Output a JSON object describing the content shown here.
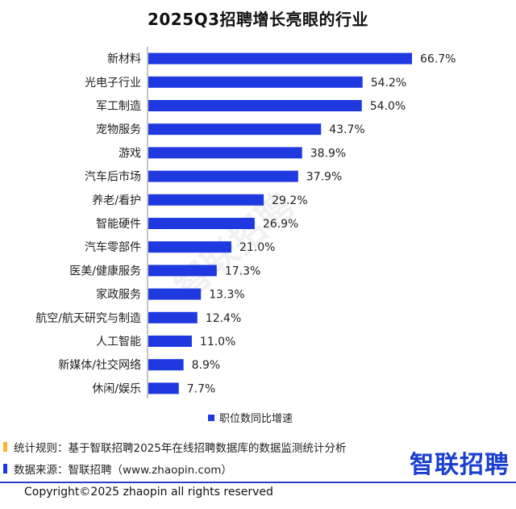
{
  "title": "2025Q3招聘增长亮眼的行业",
  "colors": {
    "bar": "#1f39e0",
    "note_mark_1": "#f7b733",
    "note_mark_2": "#1f39e0",
    "brand": "#1a3fd0"
  },
  "chart_data": {
    "type": "bar",
    "orientation": "horizontal",
    "categories": [
      "新材料",
      "光电子行业",
      "军工制造",
      "宠物服务",
      "游戏",
      "汽车后市场",
      "养老/看护",
      "智能硬件",
      "汽车零部件",
      "医美/健康服务",
      "家政服务",
      "航空/航天研究与制造",
      "人工智能",
      "新媒体/社交网络",
      "休闲/娱乐"
    ],
    "values": [
      66.7,
      54.2,
      54.0,
      43.7,
      38.9,
      37.9,
      29.2,
      26.9,
      21.0,
      17.3,
      13.3,
      12.4,
      11.0,
      8.9,
      7.7
    ],
    "value_labels": [
      "66.7%",
      "54.2%",
      "54.0%",
      "43.7%",
      "38.9%",
      "37.9%",
      "29.2%",
      "26.9%",
      "21.0%",
      "17.3%",
      "13.3%",
      "12.4%",
      "11.0%",
      "8.9%",
      "7.7%"
    ],
    "series": [
      {
        "name": "职位数同比增速"
      }
    ],
    "legend_position": "bottom",
    "grid": false,
    "xlim": [
      0,
      70
    ]
  },
  "legend": {
    "label": "职位数同比增速"
  },
  "watermark": "智联招聘",
  "notes": [
    {
      "text": "统计规则：基于智联招聘2025年在线招聘数据库的数据监测统计分析"
    },
    {
      "text": "数据来源：智联招聘（www.zhaopin.com）"
    }
  ],
  "brand": "智联招聘",
  "copyright": "Copyright©2025 zhaopin all rights reserved"
}
